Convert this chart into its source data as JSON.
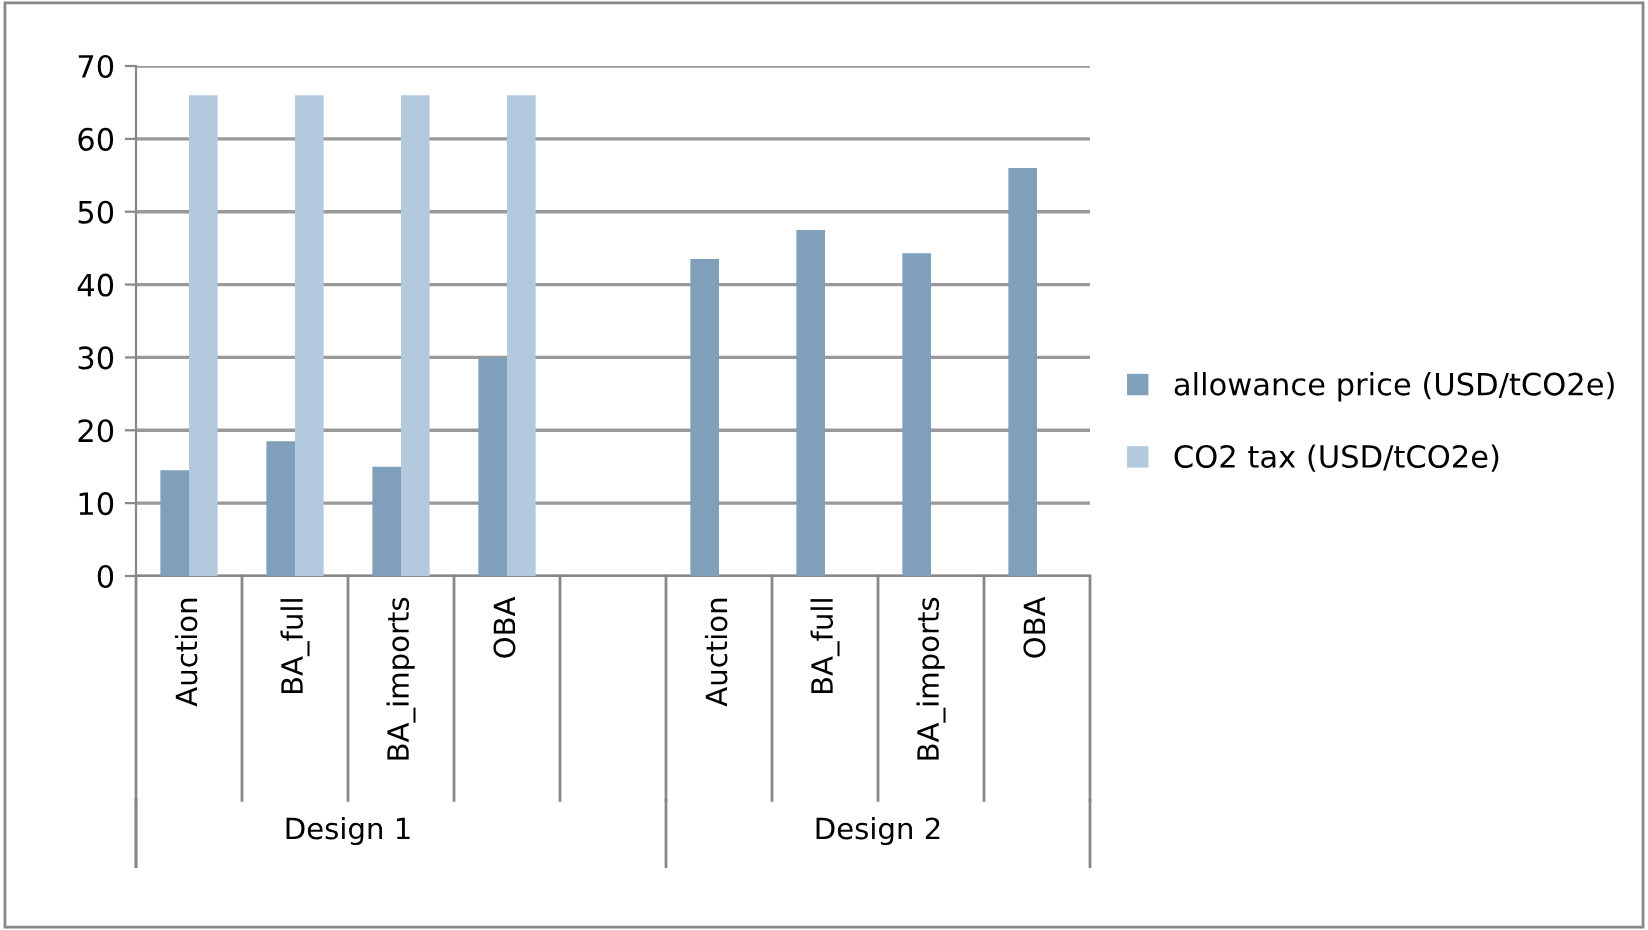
{
  "chart_data": {
    "type": "bar",
    "categories": [
      "Auction",
      "BA_full",
      "BA_imports",
      "OBA",
      null,
      "Auction",
      "BA_full",
      "BA_imports",
      "OBA"
    ],
    "series": [
      {
        "name": "allowance price (USD/tCO2e)",
        "color": "#7f9fba",
        "values": [
          14.5,
          18.5,
          15,
          30,
          null,
          43.5,
          47.5,
          44.3,
          56
        ]
      },
      {
        "name": "CO2 tax (USD/tCO2e)",
        "color": "#b3c9de",
        "values": [
          66,
          66,
          66,
          66,
          null,
          null,
          null,
          null,
          null
        ]
      }
    ],
    "annotations": [
      "Design 1",
      "Design 2"
    ],
    "ylim": [
      0,
      70
    ],
    "yticks": [
      0,
      10,
      20,
      30,
      40,
      50,
      60,
      70
    ],
    "grid": "y",
    "legend": "right"
  }
}
